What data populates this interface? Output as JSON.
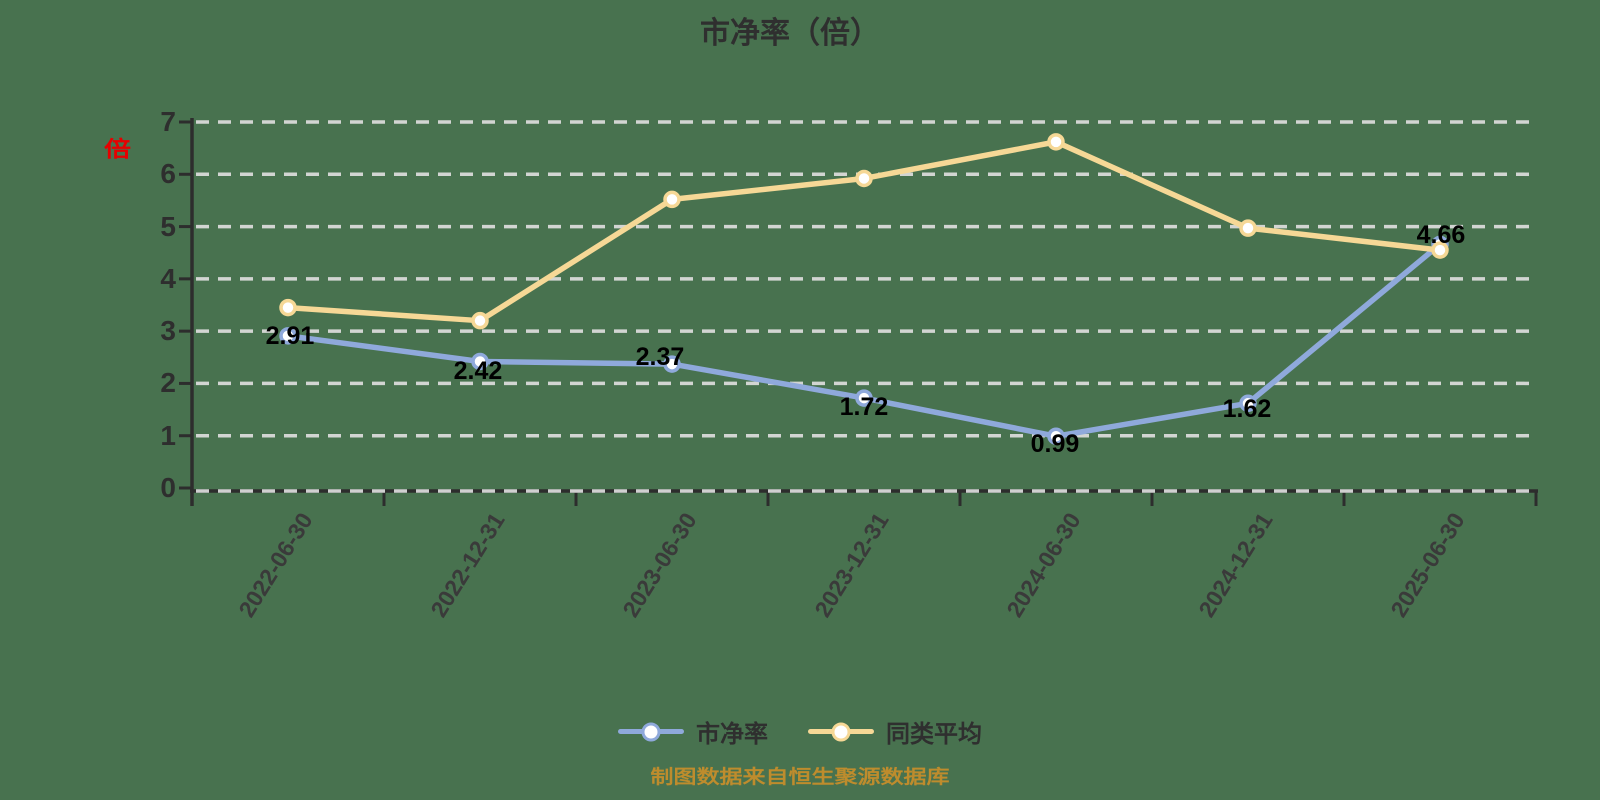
{
  "title": "市净率（倍）",
  "y_axis_unit_label": "倍",
  "footer_note": "制图数据来自恒生聚源数据库",
  "colors": {
    "background": "#48724F",
    "gridline": "#dedede",
    "axis": "#2d2d2d",
    "series_pbr": "#8FA9DB",
    "series_avg": "#F6D896",
    "data_label": "#000000",
    "unit_label": "#e60000",
    "footer": "#BE8C2D",
    "marker_fill": "#ffffff"
  },
  "chart_data": {
    "type": "line",
    "title": "市净率（倍）",
    "categories": [
      "2022-06-30",
      "2022-12-31",
      "2023-06-30",
      "2023-12-31",
      "2024-06-30",
      "2024-12-31",
      "2025-06-30"
    ],
    "series": [
      {
        "name": "市净率",
        "color": "#8FA9DB",
        "values": [
          2.91,
          2.42,
          2.37,
          1.72,
          0.99,
          1.62,
          4.66
        ],
        "value_labels": [
          "2.91",
          "2.42",
          "2.37",
          "1.72",
          "0.99",
          "1.62",
          "4.66"
        ],
        "labels_shown": true
      },
      {
        "name": "同类平均",
        "color": "#F6D896",
        "values": [
          3.45,
          3.2,
          5.52,
          5.92,
          6.62,
          4.97,
          4.55
        ],
        "labels_shown": false
      }
    ],
    "xlabel": "",
    "ylabel": "",
    "ylim": [
      0,
      7
    ],
    "yticks": [
      0,
      1,
      2,
      3,
      4,
      5,
      6,
      7
    ],
    "grid": "dashed-horizontal",
    "legend_position": "bottom"
  },
  "legend": {
    "items": [
      {
        "label": "市净率"
      },
      {
        "label": "同类平均"
      }
    ]
  }
}
